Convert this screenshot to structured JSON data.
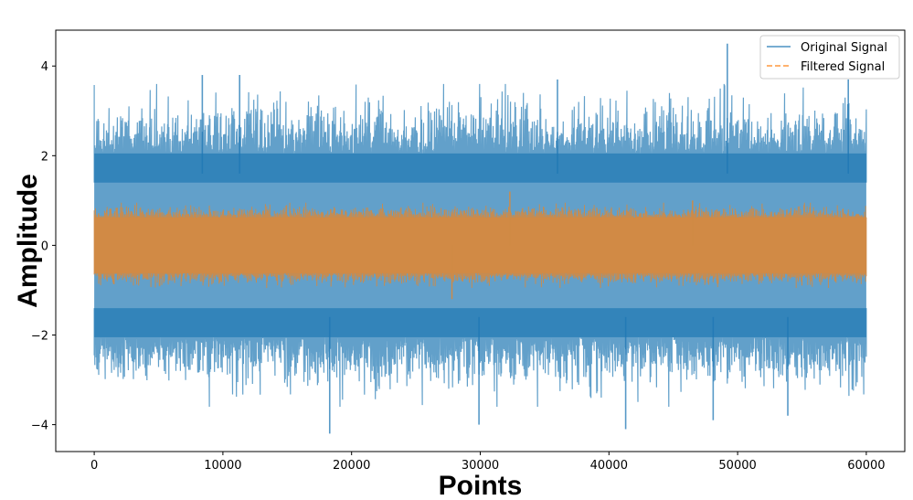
{
  "chart_data": {
    "type": "line",
    "title": "",
    "xlabel": "Points",
    "ylabel": "Amplitude",
    "xlim": [
      -2990,
      62990
    ],
    "ylim": [
      -4.6,
      4.8
    ],
    "xticks": [
      0,
      10000,
      20000,
      30000,
      40000,
      50000,
      60000
    ],
    "xtick_labels": [
      "0",
      "10000",
      "20000",
      "30000",
      "40000",
      "50000",
      "60000"
    ],
    "yticks": [
      -4,
      -2,
      0,
      2,
      4
    ],
    "ytick_labels": [
      "−4",
      "−2",
      "0",
      "2",
      "4"
    ],
    "grid": false,
    "legend_position": "top-right",
    "series": [
      {
        "name": "Original Signal",
        "color": "#1f77b4",
        "alpha": 0.7,
        "style": "solid",
        "x_range": [
          0,
          60000
        ],
        "band_outer": [
          -2.6,
          2.6
        ],
        "band_inner": [
          -0.5,
          0.5
        ],
        "extremes": [
          {
            "x": 18300,
            "y": -4.2
          },
          {
            "x": 29900,
            "y": -4.0
          },
          {
            "x": 41300,
            "y": -4.1
          },
          {
            "x": 49200,
            "y": 4.5
          },
          {
            "x": 58600,
            "y": 3.7
          },
          {
            "x": 11300,
            "y": 3.8
          },
          {
            "x": 8400,
            "y": 3.8
          },
          {
            "x": 36000,
            "y": 3.7
          },
          {
            "x": 48100,
            "y": -3.9
          },
          {
            "x": 53900,
            "y": -3.8
          }
        ]
      },
      {
        "name": "Filtered Signal",
        "color": "#ff7f0e",
        "alpha": 0.7,
        "style": "dashed",
        "x_range": [
          0,
          60000
        ],
        "band": [
          -0.7,
          0.7
        ],
        "extremes": [
          {
            "x": 27800,
            "y": -1.2
          },
          {
            "x": 32300,
            "y": 1.2
          },
          {
            "x": 46500,
            "y": 1.0
          }
        ]
      }
    ]
  }
}
